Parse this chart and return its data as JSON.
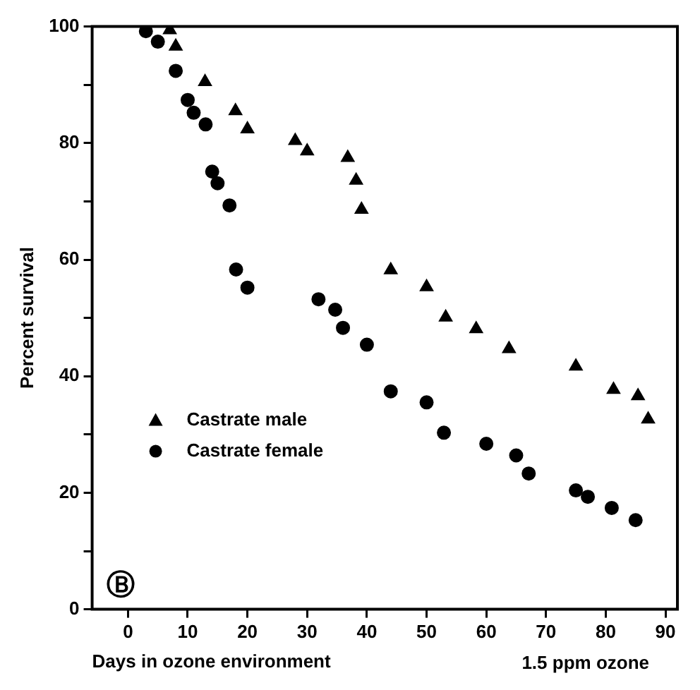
{
  "chart_data": {
    "type": "scatter",
    "xlabel": "Days in ozone environment",
    "ylabel": "Percent survival",
    "annotations": [
      "1.5 ppm ozone",
      "Ⓑ"
    ],
    "xlim": [
      -6,
      92
    ],
    "xticks": [
      0,
      10,
      20,
      30,
      40,
      50,
      60,
      70,
      80,
      90
    ],
    "ylim": [
      0,
      100
    ],
    "yticks": [
      0,
      {
        "value": 10,
        "label": null
      },
      20,
      {
        "value": 30,
        "label": null
      },
      40,
      {
        "value": 50,
        "label": null
      },
      60,
      {
        "value": 70,
        "label": null
      },
      80,
      {
        "value": 90,
        "label": null
      },
      100
    ],
    "legend": "bottom left",
    "grid": false,
    "series": [
      {
        "name": "Castrate male",
        "color": "#000000",
        "marker": "triangle",
        "x": [
          7,
          8,
          12.9,
          18,
          20,
          28,
          30,
          36.8,
          38.2,
          39.1,
          44,
          50,
          53.2,
          58.3,
          63.8,
          75,
          81.3,
          85.4,
          87.1
        ],
        "values": [
          99.4,
          96.6,
          90.5,
          85.5,
          82.4,
          80.4,
          78.6,
          77.5,
          73.6,
          68.6,
          58.2,
          55.3,
          50.1,
          48.1,
          44.7,
          41.7,
          37.7,
          36.6,
          32.6
        ]
      },
      {
        "name": "Castrate female",
        "color": "#000000",
        "marker": "circle",
        "x": [
          3,
          5,
          8,
          10,
          11,
          13,
          14.1,
          15,
          17,
          18.1,
          20,
          31.9,
          34.7,
          36,
          40,
          44,
          50,
          52.9,
          60,
          65,
          67.1,
          75,
          77,
          81,
          85
        ],
        "values": [
          99.2,
          97.4,
          92.4,
          87.4,
          85.2,
          83.2,
          75.1,
          73.1,
          69.3,
          58.3,
          55.2,
          53.2,
          51.4,
          48.3,
          45.4,
          37.4,
          35.5,
          30.3,
          28.4,
          26.4,
          23.3,
          20.4,
          19.3,
          17.4,
          15.3
        ]
      }
    ]
  }
}
